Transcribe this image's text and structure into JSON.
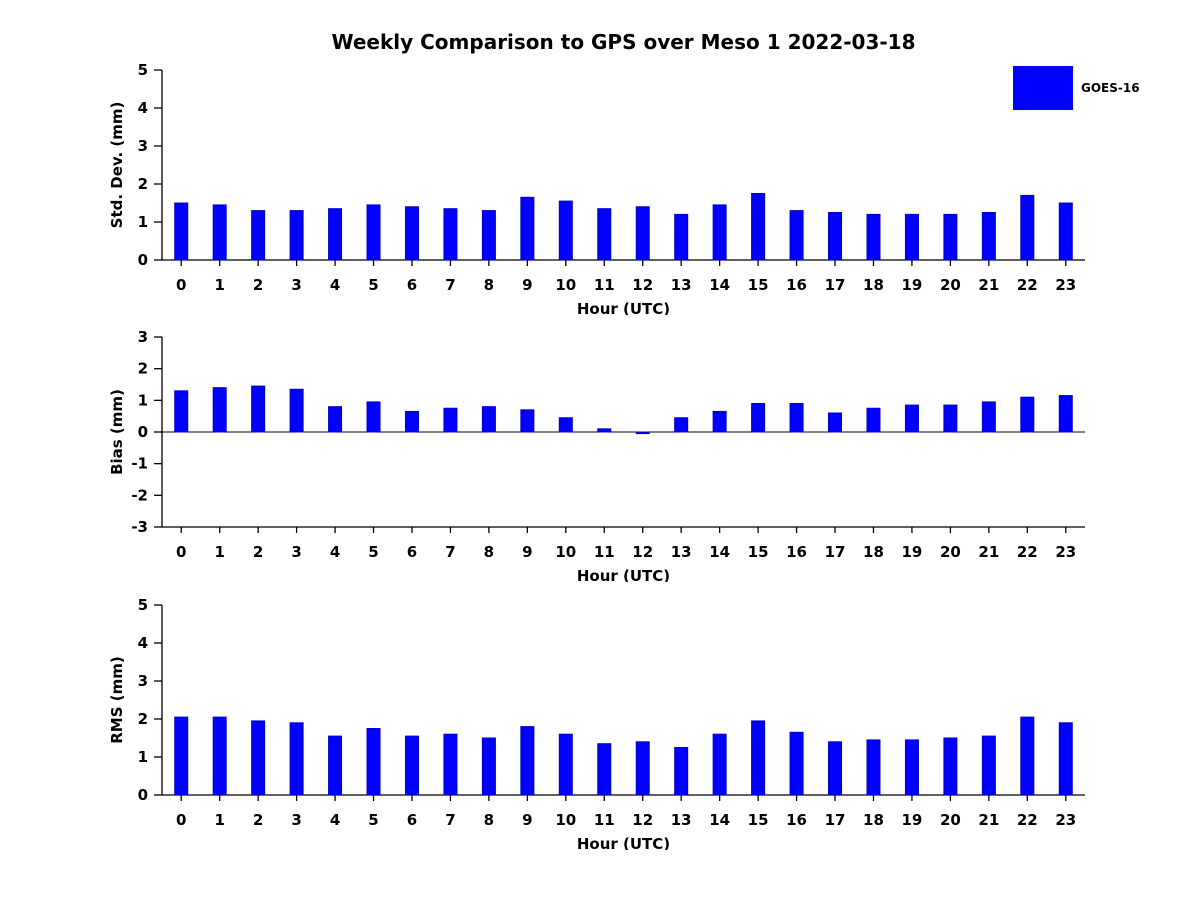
{
  "title": "Weekly Comparison to GPS over Meso 1 2022-03-18",
  "legend": {
    "label": "GOES-16",
    "color": "#0000ff"
  },
  "colors": {
    "bar": "#0000ff",
    "bar_edge": "#0000cc",
    "axis": "#000000"
  },
  "chart_data": [
    {
      "type": "bar",
      "name": "std_dev",
      "title": "",
      "xlabel": "Hour (UTC)",
      "ylabel": "Std. Dev. (mm)",
      "ylim": [
        0,
        5
      ],
      "yticks": [
        0,
        1,
        2,
        3,
        4,
        5
      ],
      "grid": false,
      "legend_position": "top-right",
      "categories": [
        "0",
        "1",
        "2",
        "3",
        "4",
        "5",
        "6",
        "7",
        "8",
        "9",
        "10",
        "11",
        "12",
        "13",
        "14",
        "15",
        "16",
        "17",
        "18",
        "19",
        "20",
        "21",
        "22",
        "23"
      ],
      "values": [
        1.5,
        1.45,
        1.3,
        1.3,
        1.35,
        1.45,
        1.4,
        1.35,
        1.3,
        1.65,
        1.55,
        1.35,
        1.4,
        1.2,
        1.45,
        1.75,
        1.3,
        1.25,
        1.2,
        1.2,
        1.2,
        1.25,
        1.7,
        1.5
      ]
    },
    {
      "type": "bar",
      "name": "bias",
      "title": "",
      "xlabel": "Hour (UTC)",
      "ylabel": "Bias (mm)",
      "ylim": [
        -3,
        3
      ],
      "yticks": [
        -3,
        -2,
        -1,
        0,
        1,
        2,
        3
      ],
      "grid": false,
      "categories": [
        "0",
        "1",
        "2",
        "3",
        "4",
        "5",
        "6",
        "7",
        "8",
        "9",
        "10",
        "11",
        "12",
        "13",
        "14",
        "15",
        "16",
        "17",
        "18",
        "19",
        "20",
        "21",
        "22",
        "23"
      ],
      "values": [
        1.3,
        1.4,
        1.45,
        1.35,
        0.8,
        0.95,
        0.65,
        0.75,
        0.8,
        0.7,
        0.45,
        0.1,
        -0.05,
        0.45,
        0.65,
        0.9,
        0.9,
        0.6,
        0.75,
        0.85,
        0.85,
        0.95,
        1.1,
        1.15
      ]
    },
    {
      "type": "bar",
      "name": "rms",
      "title": "",
      "xlabel": "Hour (UTC)",
      "ylabel": "RMS (mm)",
      "ylim": [
        0,
        5
      ],
      "yticks": [
        0,
        1,
        2,
        3,
        4,
        5
      ],
      "grid": false,
      "categories": [
        "0",
        "1",
        "2",
        "3",
        "4",
        "5",
        "6",
        "7",
        "8",
        "9",
        "10",
        "11",
        "12",
        "13",
        "14",
        "15",
        "16",
        "17",
        "18",
        "19",
        "20",
        "21",
        "22",
        "23"
      ],
      "values": [
        2.05,
        2.05,
        1.95,
        1.9,
        1.55,
        1.75,
        1.55,
        1.6,
        1.5,
        1.8,
        1.6,
        1.35,
        1.4,
        1.25,
        1.6,
        1.95,
        1.65,
        1.4,
        1.45,
        1.45,
        1.5,
        1.55,
        2.05,
        1.9
      ]
    }
  ]
}
